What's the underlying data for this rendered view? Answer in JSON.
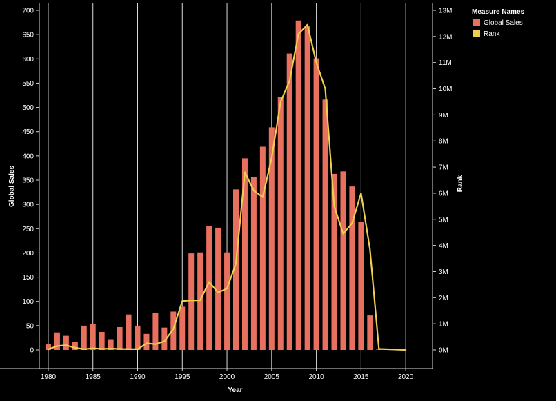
{
  "chart_data": {
    "type": "bar",
    "xlabel": "Year",
    "ylabel_left": "Global Sales",
    "ylabel_right": "Rank",
    "x_ticks": [
      "1980",
      "1985",
      "1990",
      "1995",
      "2000",
      "2005",
      "2010",
      "2015",
      "2020"
    ],
    "x_range": [
      1979,
      2023
    ],
    "y_left_ticks": [
      "0",
      "50",
      "100",
      "150",
      "200",
      "250",
      "300",
      "350",
      "400",
      "450",
      "500",
      "550",
      "600",
      "650",
      "700"
    ],
    "y_left_range": [
      0,
      700
    ],
    "y_right_ticks": [
      "0M",
      "1M",
      "2M",
      "3M",
      "4M",
      "5M",
      "6M",
      "7M",
      "8M",
      "9M",
      "10M",
      "11M",
      "12M",
      "13M"
    ],
    "y_right_range": [
      0,
      13000000
    ],
    "grid": "vertical",
    "legend": {
      "title": "Measure Names",
      "placement": "top-right",
      "entries": [
        {
          "label": "Global Sales",
          "color": "#e8705e"
        },
        {
          "label": "Rank",
          "color": "#f0cf4f"
        }
      ]
    },
    "series": [
      {
        "name": "Global Sales",
        "kind": "bar",
        "color": "#e8705e",
        "axis": "left",
        "x": [
          1980,
          1981,
          1982,
          1983,
          1984,
          1985,
          1986,
          1987,
          1988,
          1989,
          1990,
          1991,
          1992,
          1993,
          1994,
          1995,
          1996,
          1997,
          1998,
          1999,
          2000,
          2001,
          2002,
          2003,
          2004,
          2005,
          2006,
          2007,
          2008,
          2009,
          2010,
          2011,
          2012,
          2013,
          2014,
          2015,
          2016,
          2017,
          2020
        ],
        "values": [
          12,
          36,
          29,
          17,
          50,
          54,
          37,
          22,
          47,
          73,
          50,
          33,
          76,
          46,
          79,
          89,
          199,
          201,
          256,
          252,
          201,
          331,
          395,
          357,
          419,
          459,
          521,
          611,
          679,
          667,
          601,
          516,
          363,
          368,
          337,
          264,
          71,
          1,
          0
        ]
      },
      {
        "name": "Rank",
        "kind": "line",
        "color": "#f0cf4f",
        "axis": "right",
        "x": [
          1980,
          1981,
          1982,
          1983,
          1984,
          1985,
          1986,
          1987,
          1988,
          1989,
          1990,
          1991,
          1992,
          1993,
          1994,
          1995,
          1996,
          1997,
          1998,
          1999,
          2000,
          2001,
          2002,
          2003,
          2004,
          2005,
          2006,
          2007,
          2008,
          2009,
          2010,
          2011,
          2012,
          2013,
          2014,
          2015,
          2016,
          2017,
          2020
        ],
        "values": [
          20000,
          150000,
          180000,
          80000,
          30000,
          60000,
          40000,
          50000,
          40000,
          30000,
          30000,
          250000,
          220000,
          330000,
          800000,
          1870000,
          1900000,
          1900000,
          2600000,
          2200000,
          2350000,
          3300000,
          6800000,
          6100000,
          5850000,
          7350000,
          9500000,
          10300000,
          12100000,
          12450000,
          11000000,
          10000000,
          5500000,
          4450000,
          4850000,
          6000000,
          3850000,
          40000,
          0
        ]
      }
    ]
  }
}
